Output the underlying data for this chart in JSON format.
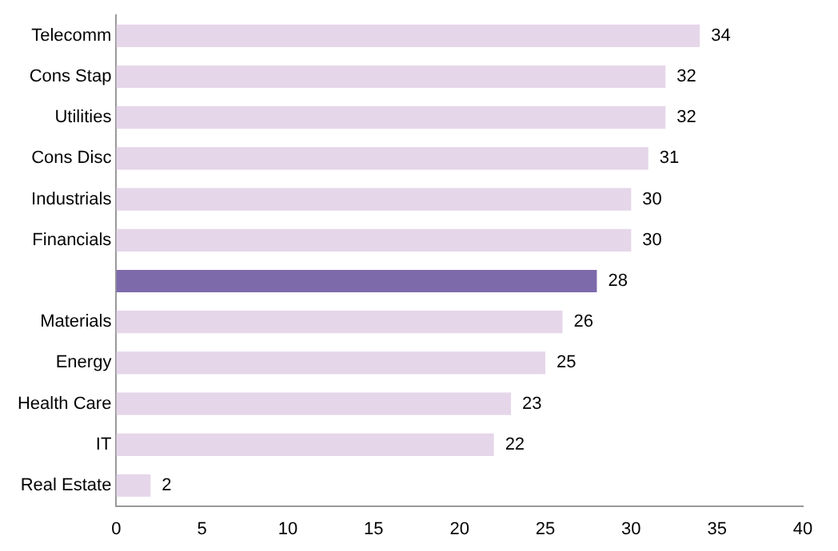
{
  "chart_data": {
    "type": "bar",
    "orientation": "horizontal",
    "categories": [
      "Telecomm",
      "Cons Stap",
      "Utilities",
      "Cons Disc",
      "Industrials",
      "Financials",
      null,
      "Materials",
      "Energy",
      "Health Care",
      "IT",
      "Real Estate"
    ],
    "values": [
      34,
      32,
      32,
      31,
      30,
      30,
      28,
      26,
      25,
      23,
      22,
      2
    ],
    "colors": [
      "#e6d6ea",
      "#e6d6ea",
      "#e6d6ea",
      "#e6d6ea",
      "#e6d6ea",
      "#e6d6ea",
      "#7d6aaa",
      "#e6d6ea",
      "#e6d6ea",
      "#e6d6ea",
      "#e6d6ea",
      "#e6d6ea"
    ],
    "xlim": [
      0,
      40
    ],
    "xticks": [
      0,
      5,
      10,
      15,
      20,
      25,
      30,
      35,
      40
    ],
    "data_labels": true,
    "grid": false,
    "legend": false
  }
}
